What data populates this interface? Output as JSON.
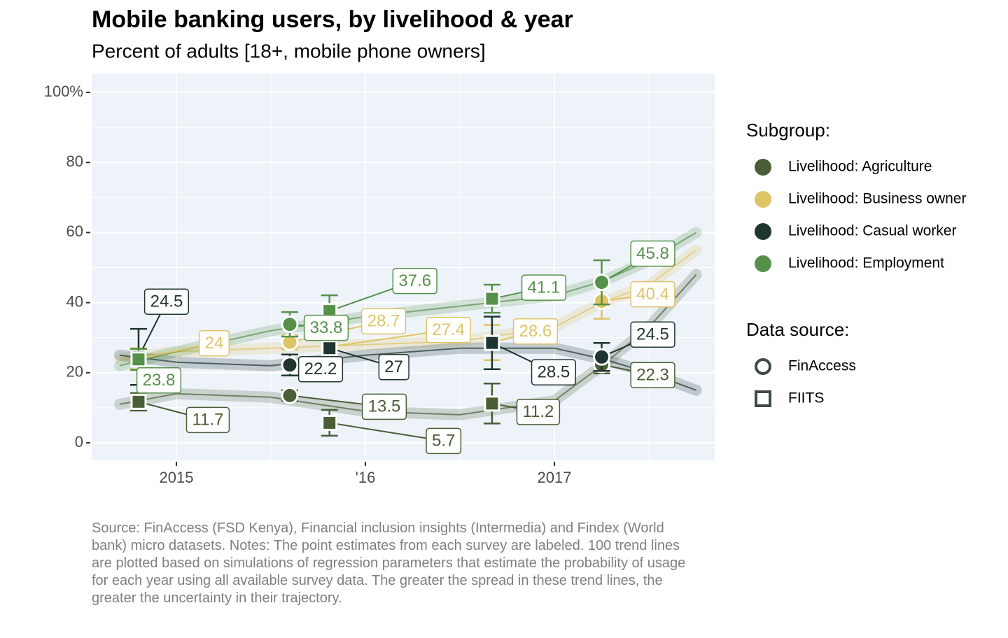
{
  "chart_data": {
    "type": "scatter",
    "title": "Mobile banking users, by livelihood & year",
    "subtitle": "Percent of adults [18+, mobile phone owners]",
    "caption": "Source: FinAccess (FSD Kenya), Financial inclusion insights (Intermedia) and Findex (World bank) micro datasets. Notes: The point estimates from each survey are labeled. 100 trend lines are plotted based on simulations of regression parameters that estimate the probability of usage for each year using all available survey data. The greater the spread in these trend lines, the greater the uncertainty in their trajectory.",
    "legend_title": "Subgroup:",
    "source_legend_title": "Data source:",
    "sources": [
      {
        "name": "FinAccess",
        "shape": "circle"
      },
      {
        "name": "FIITS",
        "shape": "square"
      }
    ],
    "x": [
      2014.8,
      2015.6,
      2015.81,
      2016.67,
      2017.25
    ],
    "point_source": [
      1,
      0,
      1,
      1,
      0
    ],
    "trend_x": [
      2014.7,
      2015,
      2015.5,
      2016,
      2016.5,
      2017,
      2017.25,
      2017.5,
      2017.75
    ],
    "series": [
      {
        "name": "Livelihood: Agriculture",
        "color": "#4a5e35",
        "values": [
          11.7,
          13.5,
          5.7,
          11.2,
          22.3
        ],
        "errors": [
          2.5,
          1.5,
          3.7,
          5.7,
          2.5
        ],
        "trend": [
          11,
          14,
          13,
          9,
          8,
          12,
          22,
          33,
          48
        ]
      },
      {
        "name": "Livelihood: Business owner",
        "color": "#dfc466",
        "values": [
          24,
          28.7,
          27.4,
          28.6,
          40.4
        ],
        "errors": [
          3,
          2,
          3,
          5,
          5
        ],
        "trend": [
          24,
          26,
          27,
          28,
          29,
          33,
          40,
          45,
          55
        ]
      },
      {
        "name": "Livelihood: Casual worker",
        "color": "#1f3530",
        "values": [
          24.5,
          22.2,
          27,
          28.5,
          24.5
        ],
        "errors": [
          8,
          3,
          3,
          7.5,
          4
        ],
        "trend": [
          25,
          23,
          22,
          25,
          27,
          27,
          24,
          20,
          15
        ]
      },
      {
        "name": "Livelihood: Employment",
        "color": "#55914a",
        "values": [
          23.8,
          33.8,
          37.6,
          41.1,
          45.8
        ],
        "errors": [
          3,
          3.5,
          4.5,
          4,
          6.3
        ],
        "trend": [
          22,
          26,
          32,
          36,
          39,
          42,
          46,
          52,
          60
        ]
      }
    ],
    "xlim": [
      2014.552,
      2017.848
    ],
    "xticks": [
      2015,
      {
        "value": 2016,
        "label": "'16"
      },
      2017
    ],
    "ylim": [
      -5,
      105.4
    ],
    "yticks": [
      0,
      20,
      40,
      60,
      80,
      {
        "value": 100,
        "label": "100%"
      }
    ],
    "grid": true
  }
}
